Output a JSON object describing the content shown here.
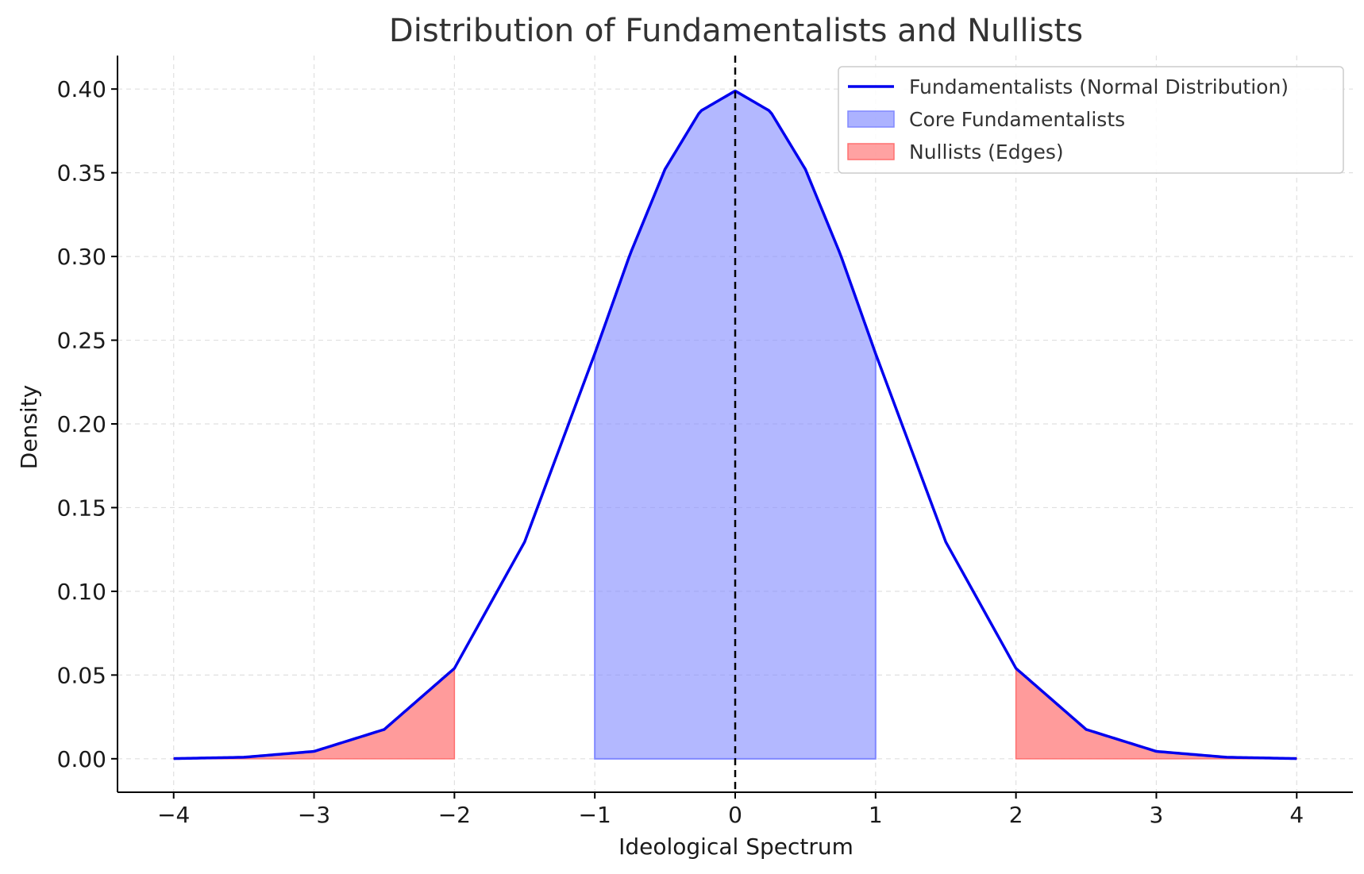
{
  "chart_data": {
    "type": "area",
    "title": "Distribution of Fundamentalists and Nullists",
    "xlabel": "Ideological Spectrum",
    "ylabel": "Density",
    "xlim": [
      -4.4,
      4.4
    ],
    "ylim": [
      -0.02,
      0.42
    ],
    "x_ticks": [
      -4,
      -3,
      -2,
      -1,
      0,
      1,
      2,
      3,
      4
    ],
    "x_tick_labels": [
      "−4",
      "−3",
      "−2",
      "−1",
      "0",
      "1",
      "2",
      "3",
      "4"
    ],
    "y_ticks": [
      0.0,
      0.05,
      0.1,
      0.15,
      0.2,
      0.25,
      0.3,
      0.35,
      0.4
    ],
    "y_tick_labels": [
      "0.00",
      "0.05",
      "0.10",
      "0.15",
      "0.20",
      "0.25",
      "0.30",
      "0.35",
      "0.40"
    ],
    "grid": true,
    "legend_position": "top-right",
    "vertical_line": {
      "x": 0,
      "style": "dashed",
      "color": "#000000"
    },
    "series": [
      {
        "name": "Fundamentalists (Normal Distribution)",
        "kind": "line",
        "color": "#0000ee",
        "x": [
          -4.0,
          -3.5,
          -3.0,
          -2.5,
          -2.0,
          -1.5,
          -1.0,
          -0.75,
          -0.5,
          -0.25,
          0.0,
          0.25,
          0.5,
          0.75,
          1.0,
          1.5,
          2.0,
          2.5,
          3.0,
          3.5,
          4.0
        ],
        "y": [
          0.0001,
          0.0009,
          0.0044,
          0.0175,
          0.054,
          0.1295,
          0.242,
          0.3011,
          0.3521,
          0.3867,
          0.3989,
          0.3867,
          0.3521,
          0.3011,
          0.242,
          0.1295,
          0.054,
          0.0175,
          0.0044,
          0.0009,
          0.0001
        ]
      },
      {
        "name": "Core Fundamentalists",
        "kind": "area",
        "color": "#8088ff",
        "x_range": [
          -1,
          1
        ]
      },
      {
        "name": "Nullists (Edges)",
        "kind": "area",
        "color": "#ff7070",
        "x_ranges": [
          [
            -4,
            -2
          ],
          [
            2,
            4
          ]
        ]
      }
    ]
  }
}
